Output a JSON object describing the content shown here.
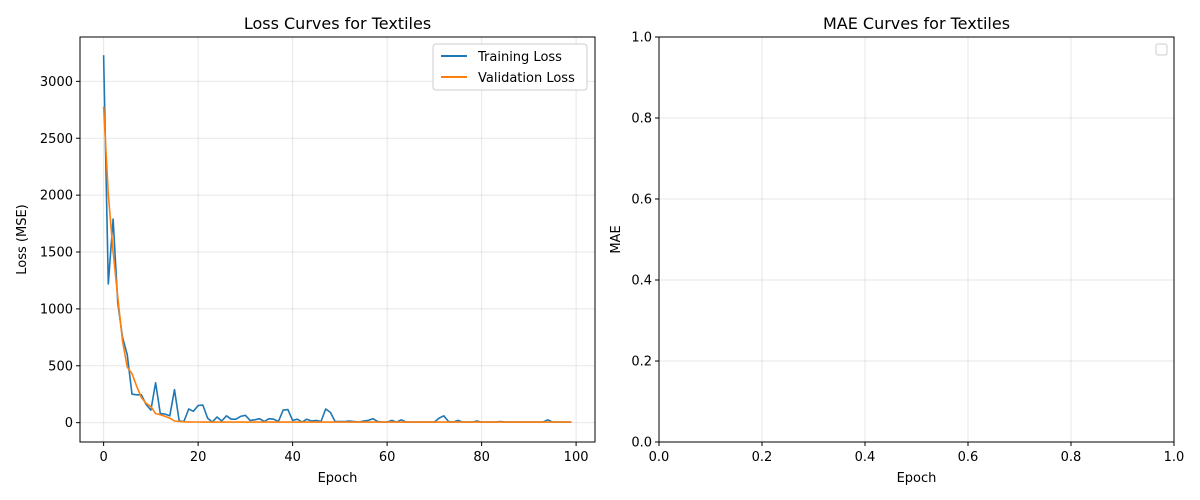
{
  "chart_data": [
    {
      "type": "line",
      "title": "Loss Curves for Textiles",
      "xlabel": "Epoch",
      "ylabel": "Loss (MSE)",
      "xlim": [
        -5,
        104
      ],
      "ylim": [
        -170,
        3390
      ],
      "xticks": [
        0,
        20,
        40,
        60,
        80,
        100
      ],
      "yticks": [
        0,
        500,
        1000,
        1500,
        2000,
        2500,
        3000
      ],
      "grid": true,
      "legend": "upper right",
      "series": [
        {
          "name": "Training Loss",
          "color": "#1f77b4",
          "x": [
            0,
            1,
            2,
            3,
            4,
            5,
            6,
            7,
            8,
            9,
            10,
            11,
            12,
            13,
            14,
            15,
            16,
            17,
            18,
            19,
            20,
            21,
            22,
            23,
            24,
            25,
            26,
            27,
            28,
            29,
            30,
            31,
            32,
            33,
            34,
            35,
            36,
            37,
            38,
            39,
            40,
            41,
            42,
            43,
            44,
            45,
            46,
            47,
            48,
            49,
            50,
            51,
            52,
            53,
            54,
            55,
            56,
            57,
            58,
            59,
            60,
            61,
            62,
            63,
            64,
            65,
            66,
            67,
            68,
            69,
            70,
            71,
            72,
            73,
            74,
            75,
            76,
            77,
            78,
            79,
            80,
            81,
            82,
            83,
            84,
            85,
            86,
            87,
            88,
            89,
            90,
            91,
            92,
            93,
            94,
            95,
            96,
            97,
            98,
            99
          ],
          "values": [
            3230,
            1220,
            1790,
            1050,
            750,
            600,
            250,
            245,
            245,
            160,
            110,
            350,
            80,
            75,
            60,
            290,
            15,
            10,
            120,
            100,
            150,
            155,
            40,
            5,
            50,
            15,
            60,
            30,
            30,
            55,
            65,
            20,
            25,
            35,
            10,
            35,
            30,
            10,
            110,
            115,
            20,
            30,
            5,
            30,
            15,
            20,
            10,
            120,
            90,
            10,
            10,
            10,
            15,
            10,
            5,
            15,
            20,
            35,
            10,
            5,
            5,
            20,
            5,
            25,
            5,
            5,
            5,
            5,
            5,
            5,
            5,
            40,
            60,
            10,
            5,
            20,
            5,
            5,
            5,
            15,
            5,
            5,
            5,
            5,
            10,
            5,
            5,
            5,
            5,
            5,
            5,
            5,
            5,
            5,
            25,
            5,
            5,
            5,
            5,
            5
          ]
        },
        {
          "name": "Validation Loss",
          "color": "#ff7f0e",
          "x": [
            0,
            1,
            2,
            3,
            4,
            5,
            6,
            7,
            8,
            9,
            10,
            11,
            12,
            13,
            14,
            15,
            16,
            17,
            18,
            19,
            20,
            21,
            22,
            23,
            24,
            25,
            26,
            27,
            28,
            29,
            30,
            31,
            32,
            33,
            34,
            35,
            36,
            37,
            38,
            39,
            40,
            41,
            42,
            43,
            44,
            45,
            46,
            47,
            48,
            49,
            50,
            51,
            52,
            53,
            54,
            55,
            56,
            57,
            58,
            59,
            60,
            61,
            62,
            63,
            64,
            65,
            66,
            67,
            68,
            69,
            70,
            71,
            72,
            73,
            74,
            75,
            76,
            77,
            78,
            79,
            80,
            81,
            82,
            83,
            84,
            85,
            86,
            87,
            88,
            89,
            90,
            91,
            92,
            93,
            94,
            95,
            96,
            97,
            98,
            99
          ],
          "values": [
            2780,
            2010,
            1500,
            1100,
            720,
            490,
            430,
            320,
            220,
            170,
            140,
            80,
            70,
            55,
            40,
            15,
            10,
            8,
            7,
            6,
            6,
            5,
            5,
            5,
            5,
            5,
            5,
            5,
            5,
            5,
            5,
            5,
            5,
            5,
            5,
            5,
            5,
            5,
            5,
            5,
            5,
            5,
            5,
            5,
            5,
            5,
            5,
            5,
            5,
            5,
            5,
            5,
            5,
            5,
            5,
            5,
            5,
            5,
            5,
            5,
            5,
            5,
            5,
            5,
            5,
            5,
            5,
            5,
            5,
            5,
            5,
            5,
            5,
            5,
            5,
            5,
            5,
            5,
            5,
            5,
            5,
            5,
            5,
            5,
            5,
            5,
            5,
            5,
            5,
            5,
            5,
            5,
            5,
            5,
            5,
            5,
            5,
            5,
            5,
            5
          ]
        }
      ]
    },
    {
      "type": "line",
      "title": "MAE Curves for Textiles",
      "xlabel": "Epoch",
      "ylabel": "MAE",
      "xlim": [
        0,
        1
      ],
      "ylim": [
        0,
        1
      ],
      "xticks": [
        0.0,
        0.2,
        0.4,
        0.6,
        0.8,
        1.0
      ],
      "yticks": [
        0.0,
        0.2,
        0.4,
        0.6,
        0.8,
        1.0
      ],
      "grid": true,
      "legend": "upper right",
      "series": []
    }
  ]
}
